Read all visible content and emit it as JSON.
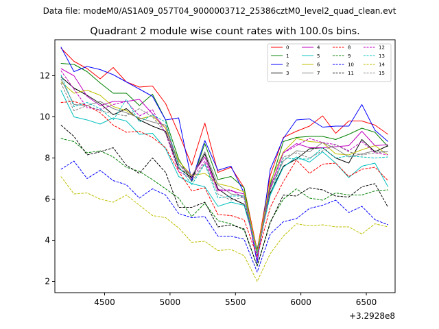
{
  "suptitle": "Data file: modeM0/AS1A09_057T04_9000003712_25386cztM0_level2_quad_clean.evt",
  "chart_data": {
    "type": "line",
    "title": "Quadrant 2 module wise count rates with 100.0s bins.",
    "xlabel": "",
    "ylabel": "",
    "x_offset_label": "+3.2928e8",
    "xlim": [
      4120,
      6720
    ],
    "ylim": [
      1.45,
      13.75
    ],
    "xticks": [
      4500,
      5000,
      5500,
      6000,
      6500
    ],
    "xtick_labels": [
      "4500",
      "5000",
      "5500",
      "6000",
      "6500"
    ],
    "yticks": [
      2,
      4,
      6,
      8,
      10,
      12
    ],
    "ytick_labels": [
      "2",
      "4",
      "6",
      "8",
      "10",
      "12"
    ],
    "grid": false,
    "legend_position": "top-right",
    "x": [
      4166,
      4266,
      4366,
      4466,
      4566,
      4666,
      4766,
      4866,
      4966,
      5066,
      5166,
      5266,
      5366,
      5466,
      5566,
      5666,
      5766,
      5866,
      5966,
      6066,
      6166,
      6266,
      6366,
      6466,
      6566,
      6666
    ],
    "series": [
      {
        "name": "0",
        "color": "#ff0000",
        "dash": "solid",
        "values": [
          13.35,
          12.7,
          12.35,
          11.85,
          12.4,
          11.7,
          11.45,
          11.5,
          10.65,
          9.2,
          7.65,
          9.7,
          7.3,
          7.55,
          6.55,
          3.5,
          7.15,
          9.0,
          9.3,
          9.55,
          10.05,
          9.2,
          9.8,
          9.8,
          9.6,
          9.15
        ]
      },
      {
        "name": "1",
        "color": "#008000",
        "dash": "solid",
        "values": [
          12.6,
          12.55,
          12.2,
          11.65,
          11.15,
          11.15,
          10.55,
          11.1,
          9.85,
          7.95,
          6.85,
          8.7,
          6.95,
          7.1,
          6.55,
          3.25,
          6.7,
          8.8,
          9.0,
          9.05,
          9.05,
          8.9,
          9.15,
          9.45,
          9.25,
          8.55
        ]
      },
      {
        "name": "2",
        "color": "#0000ff",
        "dash": "solid",
        "values": [
          13.4,
          12.2,
          12.45,
          12.3,
          12.05,
          11.7,
          11.35,
          11.0,
          9.85,
          9.95,
          6.9,
          8.85,
          7.4,
          7.6,
          6.3,
          2.9,
          7.45,
          8.95,
          9.85,
          9.9,
          9.5,
          9.55,
          9.55,
          10.6,
          9.35,
          8.8
        ]
      },
      {
        "name": "3",
        "color": "#000000",
        "dash": "solid",
        "values": [
          11.95,
          11.4,
          11.05,
          10.65,
          10.1,
          10.4,
          9.85,
          9.55,
          9.3,
          7.5,
          7.05,
          8.2,
          6.5,
          6.05,
          5.75,
          3.55,
          6.3,
          7.6,
          7.95,
          8.45,
          8.5,
          8.0,
          7.75,
          8.9,
          8.3,
          8.6
        ]
      },
      {
        "name": "4",
        "color": "#bf00bf",
        "dash": "solid",
        "values": [
          12.35,
          12.0,
          11.0,
          10.55,
          10.75,
          10.75,
          10.85,
          10.15,
          9.45,
          7.7,
          7.15,
          8.05,
          6.4,
          6.4,
          6.25,
          3.35,
          6.6,
          8.25,
          8.7,
          8.5,
          8.5,
          8.55,
          8.6,
          9.3,
          8.6,
          8.65
        ]
      },
      {
        "name": "5",
        "color": "#00bfbf",
        "dash": "solid",
        "values": [
          11.3,
          10.0,
          9.85,
          9.65,
          9.95,
          9.8,
          9.15,
          9.2,
          8.45,
          7.1,
          6.75,
          6.6,
          5.65,
          5.85,
          5.7,
          3.45,
          6.2,
          7.55,
          8.05,
          7.8,
          8.3,
          7.75,
          7.05,
          7.6,
          7.75,
          6.6
        ]
      },
      {
        "name": "6",
        "color": "#bfbf00",
        "dash": "solid",
        "values": [
          11.7,
          11.15,
          11.3,
          11.05,
          10.5,
          10.3,
          9.9,
          10.05,
          9.45,
          7.85,
          7.15,
          7.25,
          6.75,
          6.6,
          6.35,
          3.45,
          6.85,
          8.3,
          8.95,
          8.8,
          8.75,
          8.2,
          8.15,
          8.4,
          8.6,
          8.15
        ]
      },
      {
        "name": "7",
        "color": "#808080",
        "dash": "solid",
        "values": [
          11.85,
          10.6,
          10.55,
          10.75,
          10.4,
          10.2,
          9.95,
          9.75,
          9.6,
          7.7,
          7.1,
          8.3,
          6.7,
          6.25,
          6.15,
          3.3,
          6.5,
          7.85,
          8.35,
          8.3,
          8.75,
          8.45,
          8.05,
          8.2,
          8.35,
          8.3
        ]
      },
      {
        "name": "8",
        "color": "#ff0000",
        "dash": "dashed",
        "values": [
          10.7,
          10.75,
          10.55,
          10.2,
          9.6,
          9.25,
          9.3,
          9.0,
          8.5,
          7.35,
          6.4,
          6.55,
          5.25,
          5.2,
          5.0,
          3.2,
          5.6,
          6.85,
          7.9,
          7.25,
          7.7,
          7.75,
          7.1,
          7.45,
          7.55,
          6.9
        ]
      },
      {
        "name": "9",
        "color": "#008000",
        "dash": "dashed",
        "values": [
          8.95,
          8.8,
          8.25,
          8.35,
          8.05,
          7.55,
          7.35,
          6.95,
          6.5,
          6.05,
          5.15,
          5.8,
          4.95,
          4.8,
          4.5,
          2.75,
          4.9,
          6.0,
          6.5,
          6.05,
          5.95,
          6.3,
          6.2,
          6.2,
          6.4,
          6.45
        ]
      },
      {
        "name": "10",
        "color": "#0000ff",
        "dash": "dashed",
        "values": [
          7.45,
          7.85,
          7.0,
          7.4,
          6.9,
          6.7,
          6.05,
          6.5,
          6.2,
          5.3,
          5.1,
          5.15,
          4.2,
          4.2,
          4.05,
          2.45,
          4.3,
          4.9,
          5.05,
          5.55,
          5.7,
          5.95,
          5.35,
          5.65,
          5.0,
          4.75
        ]
      },
      {
        "name": "11",
        "color": "#000000",
        "dash": "dashed",
        "values": [
          9.6,
          9.05,
          8.15,
          8.3,
          8.5,
          7.65,
          7.25,
          8.0,
          7.3,
          5.6,
          5.6,
          5.85,
          4.65,
          4.75,
          4.55,
          2.75,
          4.85,
          6.2,
          6.15,
          6.55,
          6.45,
          6.15,
          6.1,
          6.6,
          6.75,
          5.6
        ]
      },
      {
        "name": "12",
        "color": "#bf00bf",
        "dash": "dashed",
        "values": [
          12.25,
          11.35,
          10.45,
          10.35,
          10.6,
          10.75,
          10.05,
          10.35,
          9.2,
          7.35,
          7.0,
          7.85,
          6.45,
          6.45,
          6.05,
          3.05,
          6.55,
          8.25,
          8.6,
          8.95,
          8.75,
          8.65,
          8.35,
          8.8,
          8.25,
          8.15
        ]
      },
      {
        "name": "13",
        "color": "#00bfbf",
        "dash": "dashed",
        "values": [
          12.05,
          10.5,
          10.7,
          10.4,
          9.85,
          10.85,
          9.75,
          10.1,
          9.75,
          7.6,
          6.7,
          7.7,
          6.05,
          6.15,
          6.15,
          3.35,
          6.2,
          8.0,
          7.95,
          7.95,
          8.5,
          8.0,
          8.1,
          8.05,
          8.0,
          8.05
        ]
      },
      {
        "name": "14",
        "color": "#bfbf00",
        "dash": "dashed",
        "values": [
          7.1,
          6.25,
          6.3,
          6.0,
          5.85,
          6.2,
          5.7,
          5.2,
          5.1,
          4.6,
          3.9,
          3.95,
          3.5,
          3.55,
          3.25,
          2.0,
          3.35,
          4.2,
          4.8,
          4.7,
          4.75,
          4.65,
          4.65,
          4.3,
          4.8,
          4.65
        ]
      },
      {
        "name": "15",
        "color": "#808080",
        "dash": "dashed",
        "values": [
          11.65,
          10.3,
          10.55,
          10.3,
          10.15,
          10.05,
          10.4,
          10.0,
          9.2,
          7.75,
          6.85,
          7.75,
          6.25,
          5.95,
          6.1,
          3.25,
          6.45,
          8.05,
          8.25,
          8.0,
          8.35,
          8.65,
          8.3,
          8.15,
          8.25,
          8.3
        ]
      }
    ]
  }
}
